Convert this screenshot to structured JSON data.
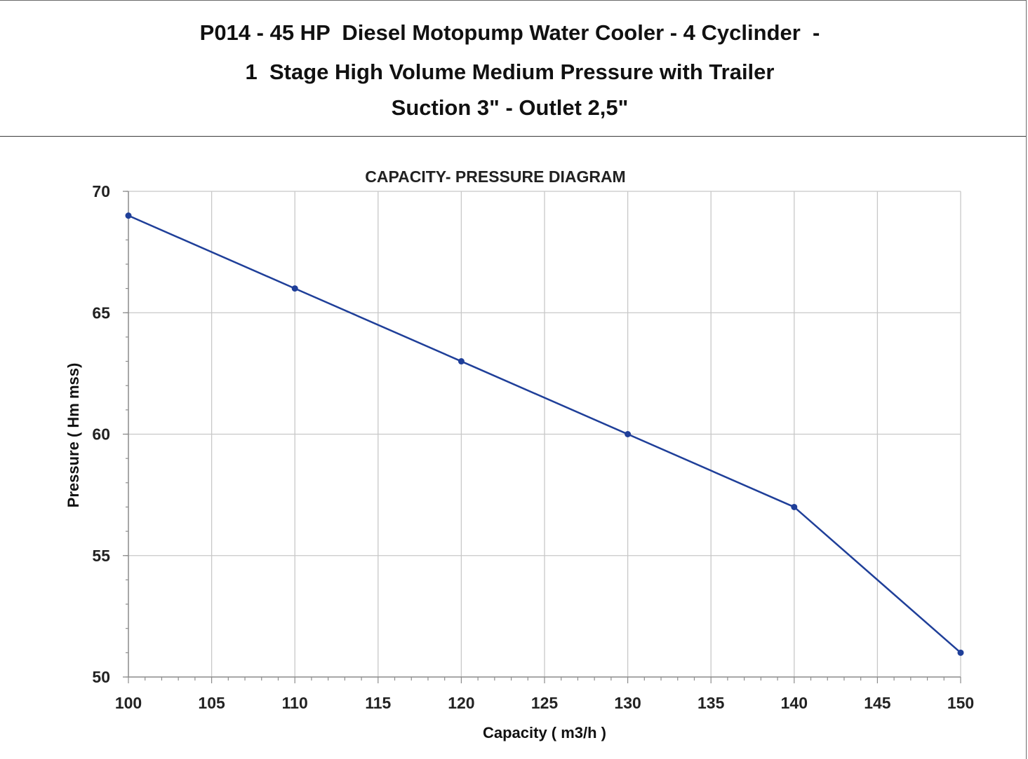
{
  "header": {
    "line1": "P014 - 45 HP  Diesel Motopump Water Cooler - 4 Cyclinder  -",
    "line2": "1  Stage High Volume Medium Pressure with Trailer",
    "line3": "Suction 3\" - Outlet 2,5\""
  },
  "colors": {
    "series": "#1f3f99",
    "grid": "#c8c8c8",
    "axis": "#8c8c8c"
  },
  "chart_data": {
    "type": "line",
    "title": "CAPACITY- PRESSURE DIAGRAM",
    "xlabel": "Capacity ( m3/h )",
    "ylabel": "Pressure ( Hm mss)",
    "xlim": [
      100,
      150
    ],
    "ylim": [
      50,
      70
    ],
    "x_ticks": [
      "100",
      "105",
      "110",
      "115",
      "120",
      "125",
      "130",
      "135",
      "140",
      "145",
      "150"
    ],
    "y_ticks": [
      "50",
      "55",
      "60",
      "65",
      "70"
    ],
    "grid": true,
    "legend": "none",
    "series": [
      {
        "x": [
          100,
          110,
          120,
          130,
          140,
          150
        ],
        "y": [
          69,
          66,
          63,
          60,
          57,
          51
        ],
        "marker": "circle"
      }
    ]
  }
}
